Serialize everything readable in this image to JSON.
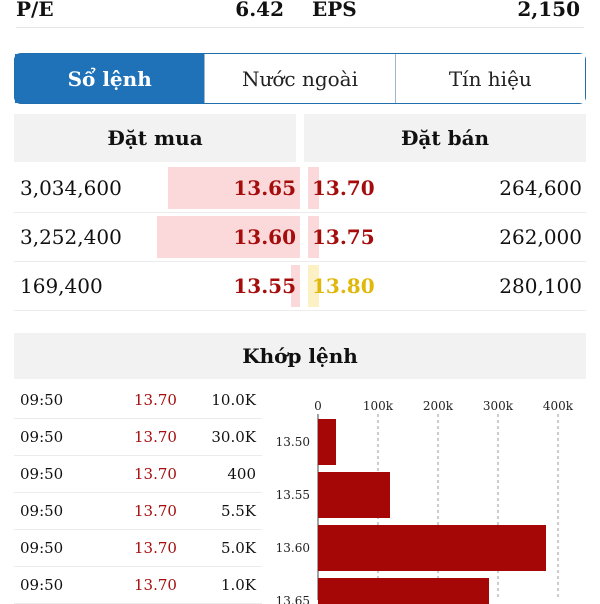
{
  "stats": [
    {
      "label": "P/E",
      "value": "6.42"
    },
    {
      "label": "EPS",
      "value": "2,150"
    }
  ],
  "tabs": [
    {
      "label": "Sổ lệnh",
      "active": true
    },
    {
      "label": "Nước ngoài",
      "active": false
    },
    {
      "label": "Tín hiệu",
      "active": false
    }
  ],
  "order_book": {
    "buy_header": "Đặt mua",
    "sell_header": "Đặt bán",
    "colors": {
      "down": "#a50d0d",
      "ref": "#e1b80a",
      "buy_bar": "#fbd9db",
      "sell_bar_down": "#fbd9db",
      "sell_bar_ref": "#fbf1c4"
    },
    "rows": [
      {
        "buy_volume": "3,034,600",
        "buy_price": "13.65",
        "buy_bar": 0.46,
        "sell_price": "13.70",
        "sell_volume": "264,600",
        "sell_bar": 0.04,
        "sell_color": "down"
      },
      {
        "buy_volume": "3,252,400",
        "buy_price": "13.60",
        "buy_bar": 0.5,
        "sell_price": "13.75",
        "sell_volume": "262,000",
        "sell_bar": 0.04,
        "sell_color": "down"
      },
      {
        "buy_volume": "169,400",
        "buy_price": "13.55",
        "buy_bar": 0.03,
        "sell_price": "13.80",
        "sell_volume": "280,100",
        "sell_bar": 0.04,
        "sell_color": "ref"
      }
    ]
  },
  "matching": {
    "header": "Khớp lệnh",
    "trades": [
      {
        "time": "09:50",
        "price": "13.70",
        "volume": "10.0K"
      },
      {
        "time": "09:50",
        "price": "13.70",
        "volume": "30.0K"
      },
      {
        "time": "09:50",
        "price": "13.70",
        "volume": "400"
      },
      {
        "time": "09:50",
        "price": "13.70",
        "volume": "5.5K"
      },
      {
        "time": "09:50",
        "price": "13.70",
        "volume": "5.0K"
      },
      {
        "time": "09:50",
        "price": "13.70",
        "volume": "1.0K"
      }
    ]
  },
  "chart_data": {
    "type": "bar",
    "orientation": "horizontal",
    "categories": [
      "13.50",
      "13.55",
      "13.60",
      "13.65"
    ],
    "values": [
      30000,
      120000,
      380000,
      285000
    ],
    "xlim": [
      0,
      400000
    ],
    "x_ticks": [
      0,
      100000,
      200000,
      300000,
      400000
    ],
    "x_tick_labels": [
      "0",
      "100k",
      "200k",
      "300k",
      "400k"
    ],
    "bar_color": "#a50606",
    "grid": "dashed vertical"
  }
}
